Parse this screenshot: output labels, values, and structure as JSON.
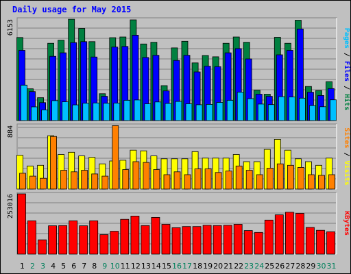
{
  "title": "Daily usage for May 2015",
  "colors": {
    "frame_bg": "#c0c0c0",
    "grid": "#808080",
    "title": "#0000ff",
    "hits": "#008040",
    "files": "#0000ff",
    "pages": "#00c0ff",
    "visits": "#ffff00",
    "sites": "#ff8000",
    "kbytes": "#ff0000",
    "weekday": "#000000",
    "weekend": "#00805c"
  },
  "chart_data": {
    "type": "bar",
    "x": [
      "1",
      "2",
      "3",
      "4",
      "5",
      "6",
      "7",
      "8",
      "9",
      "10",
      "11",
      "12",
      "13",
      "14",
      "15",
      "16",
      "17",
      "18",
      "19",
      "20",
      "21",
      "22",
      "23",
      "24",
      "25",
      "26",
      "27",
      "28",
      "29",
      "30",
      "31"
    ],
    "weekend_days": [
      "2",
      "3",
      "9",
      "10",
      "16",
      "17",
      "23",
      "24",
      "30",
      "31"
    ],
    "panels": [
      {
        "name": "hits-files-pages",
        "ymax_label": "6153",
        "ymax": 6153,
        "axis_label": [
          "Pages",
          "Files",
          "Hits"
        ],
        "series": [
          {
            "name": "Hits",
            "color": "#008040",
            "values": [
              5040,
              1930,
              1390,
              4690,
              4880,
              6150,
              5590,
              4790,
              1630,
              5030,
              5070,
              6110,
              4650,
              4750,
              2120,
              4410,
              4810,
              3500,
              3950,
              3870,
              4690,
              5070,
              4750,
              1840,
              1600,
              5050,
              4690,
              6090,
              2070,
              1820,
              2360
            ]
          },
          {
            "name": "Files",
            "color": "#0000ff",
            "values": [
              4260,
              1760,
              1090,
              3900,
              4110,
              4730,
              4790,
              3860,
              1470,
              4460,
              4500,
              5180,
              3830,
              3960,
              1800,
              3650,
              3960,
              2950,
              3300,
              3270,
              4110,
              4370,
              3740,
              1600,
              1470,
              3990,
              4260,
              5560,
              1720,
              1520,
              1940
            ]
          },
          {
            "name": "Pages",
            "color": "#00c0ff",
            "values": [
              2150,
              830,
              650,
              1210,
              1140,
              950,
              1050,
              1070,
              1050,
              1060,
              1230,
              1250,
              1020,
              1130,
              1040,
              1160,
              1020,
              960,
              980,
              1100,
              1230,
              1720,
              1330,
              1000,
              970,
              1450,
              1430,
              1360,
              910,
              840,
              1260
            ]
          }
        ]
      },
      {
        "name": "visits-sites",
        "ymax_label": "884",
        "ymax": 884,
        "axis_label": [
          "Sites",
          "Visits"
        ],
        "series": [
          {
            "name": "Visits",
            "color": "#ffff00",
            "values": [
              470,
              320,
              330,
              740,
              480,
              510,
              460,
              440,
              350,
              390,
              400,
              540,
              530,
              460,
              420,
              420,
              420,
              520,
              430,
              430,
              430,
              480,
              380,
              380,
              550,
              690,
              540,
              420,
              380,
              330,
              430
            ]
          },
          {
            "name": "Sites",
            "color": "#ff8000",
            "values": [
              220,
              180,
              150,
              730,
              260,
              240,
              260,
              210,
              180,
              880,
              270,
              380,
              370,
              270,
              200,
              240,
              200,
              280,
              280,
              230,
              250,
              320,
              260,
              200,
              290,
              350,
              330,
              300,
              200,
              190,
              200
            ]
          }
        ]
      },
      {
        "name": "kbytes",
        "ymax_label": "253016",
        "ymax": 253016,
        "axis_label": [
          "KBytes"
        ],
        "series": [
          {
            "name": "KBytes",
            "color": "#ff0000",
            "values": [
              253016,
              140000,
              60000,
              119000,
              120000,
              140000,
              119000,
              140000,
              82000,
              96000,
              146000,
              160000,
              120000,
              154000,
              125000,
              111000,
              116000,
              116000,
              121000,
              120000,
              121000,
              125000,
              99000,
              91000,
              143000,
              165000,
              176000,
              171000,
              112000,
              100000,
              94000
            ]
          }
        ]
      }
    ]
  }
}
